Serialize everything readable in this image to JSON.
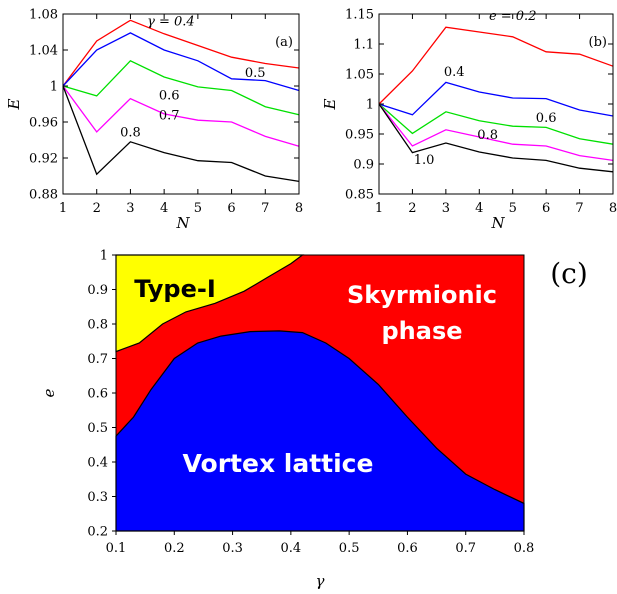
{
  "chart_data": [
    {
      "type": "line",
      "panel_label": "(a)",
      "xlabel": "N",
      "ylabel": "E",
      "xlim": [
        1,
        8
      ],
      "ylim": [
        0.88,
        1.08
      ],
      "x_ticks": [
        "1",
        "2",
        "3",
        "4",
        "5",
        "6",
        "7",
        "8"
      ],
      "y_ticks": [
        "0.88",
        "0.92",
        "0.96",
        "1",
        "1.04",
        "1.08"
      ],
      "x": [
        1,
        2,
        3,
        4,
        5,
        6,
        7,
        8
      ],
      "series": [
        {
          "name": "γ = 0.4",
          "color": "#ff0000",
          "values": [
            1.0,
            1.05,
            1.073,
            1.058,
            1.045,
            1.032,
            1.025,
            1.02
          ]
        },
        {
          "name": "0.5",
          "color": "#0000ff",
          "values": [
            1.0,
            1.04,
            1.059,
            1.04,
            1.028,
            1.008,
            1.006,
            0.995
          ]
        },
        {
          "name": "0.6",
          "color": "#00e000",
          "values": [
            1.0,
            0.989,
            1.028,
            1.01,
            0.999,
            0.995,
            0.977,
            0.968
          ]
        },
        {
          "name": "0.7",
          "color": "#ff00ff",
          "values": [
            1.0,
            0.949,
            0.986,
            0.969,
            0.962,
            0.96,
            0.944,
            0.933
          ]
        },
        {
          "name": "0.8",
          "color": "#000000",
          "values": [
            1.0,
            0.902,
            0.938,
            0.926,
            0.917,
            0.915,
            0.9,
            0.894
          ]
        }
      ],
      "annotations": [
        {
          "text": "γ = 0.4",
          "x": 4.2,
          "y": 1.067
        },
        {
          "text": "0.5",
          "x": 6.7,
          "y": 1.01
        },
        {
          "text": "0.6",
          "x": 4.15,
          "y": 0.985
        },
        {
          "text": "0.7",
          "x": 4.15,
          "y": 0.963
        },
        {
          "text": "0.8",
          "x": 3.0,
          "y": 0.944
        }
      ]
    },
    {
      "type": "line",
      "panel_label": "(b)",
      "xlabel": "N",
      "ylabel": "E",
      "xlim": [
        1,
        8
      ],
      "ylim": [
        0.85,
        1.15
      ],
      "x_ticks": [
        "1",
        "2",
        "3",
        "4",
        "5",
        "6",
        "7",
        "8"
      ],
      "y_ticks": [
        "0.85",
        "0.9",
        "0.95",
        "1",
        "1.05",
        "1.1",
        "1.15"
      ],
      "x": [
        1,
        2,
        3,
        4,
        5,
        6,
        7,
        8
      ],
      "series": [
        {
          "name": "e = 0.2",
          "color": "#ff0000",
          "values": [
            1.0,
            1.055,
            1.128,
            1.12,
            1.112,
            1.087,
            1.083,
            1.063
          ]
        },
        {
          "name": "0.4",
          "color": "#0000ff",
          "values": [
            1.0,
            0.982,
            1.036,
            1.02,
            1.01,
            1.009,
            0.99,
            0.98
          ]
        },
        {
          "name": "0.6",
          "color": "#00e000",
          "values": [
            1.0,
            0.951,
            0.987,
            0.972,
            0.963,
            0.961,
            0.942,
            0.933
          ]
        },
        {
          "name": "0.8",
          "color": "#ff00ff",
          "values": [
            1.0,
            0.93,
            0.957,
            0.945,
            0.933,
            0.93,
            0.914,
            0.906
          ]
        },
        {
          "name": "1.0",
          "color": "#000000",
          "values": [
            1.0,
            0.919,
            0.935,
            0.92,
            0.91,
            0.906,
            0.893,
            0.887
          ]
        }
      ],
      "annotations": [
        {
          "text": "e = 0.2",
          "x": 5.0,
          "y": 1.14
        },
        {
          "text": "0.4",
          "x": 3.25,
          "y": 1.047
        },
        {
          "text": "0.6",
          "x": 6.0,
          "y": 0.97
        },
        {
          "text": "0.8",
          "x": 4.25,
          "y": 0.942
        },
        {
          "text": "1.0",
          "x": 2.35,
          "y": 0.9
        }
      ]
    },
    {
      "type": "heatmap",
      "panel_label": "(c)",
      "xlabel": "γ",
      "ylabel": "e",
      "xlim": [
        0.1,
        0.8
      ],
      "ylim": [
        0.2,
        1.0
      ],
      "x_ticks": [
        "0.1",
        "0.2",
        "0.3",
        "0.4",
        "0.5",
        "0.6",
        "0.7",
        "0.8"
      ],
      "y_ticks": [
        "0.2",
        "0.3",
        "0.4",
        "0.5",
        "0.6",
        "0.7",
        "0.8",
        "0.9",
        "1"
      ],
      "regions": [
        {
          "name": "Type-I",
          "color": "#ffff00"
        },
        {
          "name": "Skyrmionic phase",
          "label_lines": [
            "Skyrmionic",
            "phase"
          ],
          "color": "#ff0000"
        },
        {
          "name": "Vortex lattice",
          "color": "#0000ff"
        }
      ],
      "boundary_typeI": [
        [
          0.1,
          0.72
        ],
        [
          0.14,
          0.745
        ],
        [
          0.18,
          0.8
        ],
        [
          0.22,
          0.835
        ],
        [
          0.27,
          0.86
        ],
        [
          0.32,
          0.895
        ],
        [
          0.36,
          0.935
        ],
        [
          0.4,
          0.975
        ],
        [
          0.42,
          1.0
        ]
      ],
      "boundary_vortex": [
        [
          0.1,
          0.475
        ],
        [
          0.13,
          0.53
        ],
        [
          0.16,
          0.61
        ],
        [
          0.2,
          0.7
        ],
        [
          0.24,
          0.745
        ],
        [
          0.28,
          0.765
        ],
        [
          0.33,
          0.778
        ],
        [
          0.38,
          0.78
        ],
        [
          0.42,
          0.775
        ],
        [
          0.46,
          0.745
        ],
        [
          0.5,
          0.7
        ],
        [
          0.55,
          0.625
        ],
        [
          0.6,
          0.53
        ],
        [
          0.65,
          0.44
        ],
        [
          0.7,
          0.365
        ],
        [
          0.75,
          0.32
        ],
        [
          0.8,
          0.28
        ]
      ]
    }
  ]
}
